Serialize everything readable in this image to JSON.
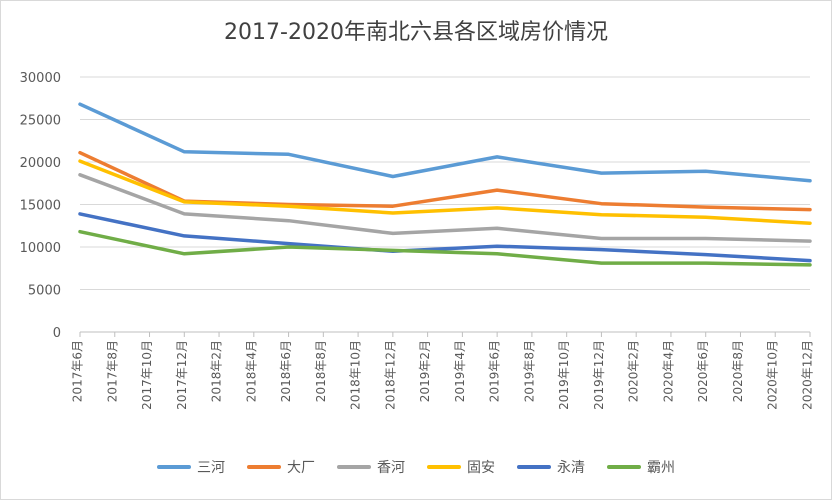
{
  "chart_data": {
    "type": "line",
    "title": "2017-2020年南北六县各区域房价情况",
    "xlabel": "",
    "ylabel": "",
    "ylim": [
      0,
      30000
    ],
    "yticks": [
      0,
      5000,
      10000,
      15000,
      20000,
      25000,
      30000
    ],
    "grid": "horizontal",
    "legend_position": "bottom",
    "categories": [
      "2017年6月",
      "2017年8月",
      "2017年10月",
      "2017年12月",
      "2018年2月",
      "2018年4月",
      "2018年6月",
      "2018年8月",
      "2018年10月",
      "2018年12月",
      "2019年2月",
      "2019年4月",
      "2019年6月",
      "2019年8月",
      "2019年10月",
      "2019年12月",
      "2020年2月",
      "2020年4月",
      "2020年6月",
      "2020年8月",
      "2020年10月",
      "2020年12月"
    ],
    "series": [
      {
        "name": "三河",
        "color": "#5b9bd5",
        "points": [
          [
            0,
            26800
          ],
          [
            3,
            21200
          ],
          [
            6,
            20900
          ],
          [
            9,
            18300
          ],
          [
            12,
            20600
          ],
          [
            15,
            18700
          ],
          [
            18,
            18900
          ],
          [
            21,
            17800
          ]
        ]
      },
      {
        "name": "大厂",
        "color": "#ed7d31",
        "points": [
          [
            0,
            21100
          ],
          [
            3,
            15400
          ],
          [
            6,
            15000
          ],
          [
            9,
            14800
          ],
          [
            12,
            16700
          ],
          [
            15,
            15100
          ],
          [
            18,
            14700
          ],
          [
            21,
            14400
          ]
        ]
      },
      {
        "name": "香河",
        "color": "#a5a5a5",
        "points": [
          [
            0,
            18500
          ],
          [
            3,
            13900
          ],
          [
            6,
            13100
          ],
          [
            9,
            11600
          ],
          [
            12,
            12200
          ],
          [
            15,
            11000
          ],
          [
            18,
            11000
          ],
          [
            21,
            10700
          ]
        ]
      },
      {
        "name": "固安",
        "color": "#ffc000",
        "points": [
          [
            0,
            20100
          ],
          [
            3,
            15300
          ],
          [
            6,
            14800
          ],
          [
            9,
            14000
          ],
          [
            12,
            14600
          ],
          [
            15,
            13800
          ],
          [
            18,
            13500
          ],
          [
            21,
            12800
          ]
        ]
      },
      {
        "name": "永清",
        "color": "#4472c4",
        "points": [
          [
            0,
            13900
          ],
          [
            3,
            11300
          ],
          [
            6,
            10400
          ],
          [
            9,
            9500
          ],
          [
            12,
            10100
          ],
          [
            15,
            9700
          ],
          [
            18,
            9100
          ],
          [
            21,
            8400
          ]
        ]
      },
      {
        "name": "霸州",
        "color": "#70ad47",
        "points": [
          [
            0,
            11800
          ],
          [
            3,
            9200
          ],
          [
            6,
            10000
          ],
          [
            9,
            9600
          ],
          [
            12,
            9200
          ],
          [
            15,
            8100
          ],
          [
            18,
            8100
          ],
          [
            21,
            7900
          ]
        ]
      }
    ]
  }
}
